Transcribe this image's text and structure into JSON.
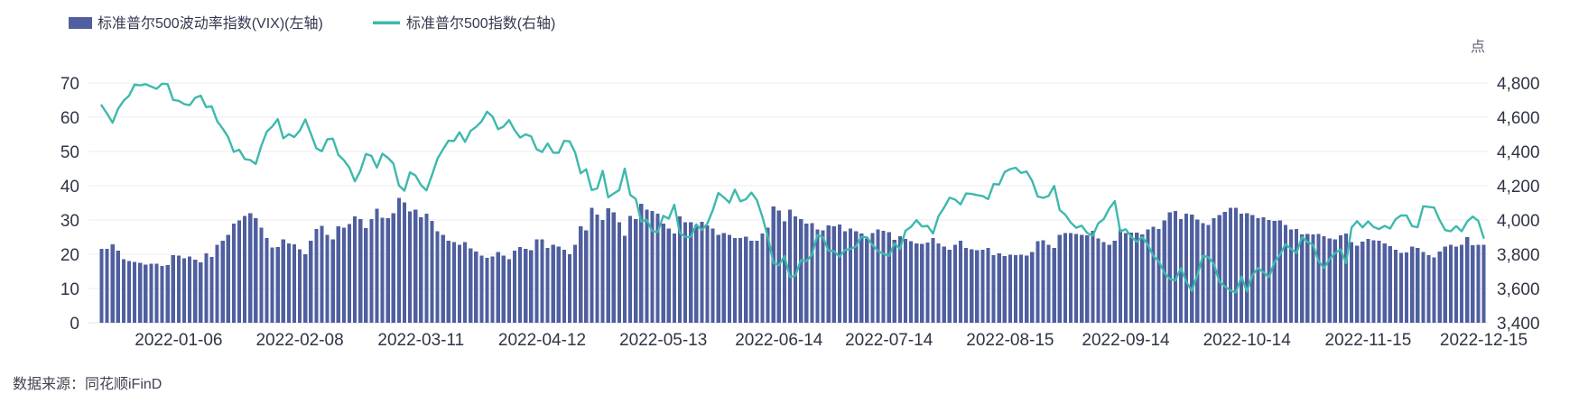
{
  "source": "数据来源：同花顺iFinD",
  "unit_label": "点",
  "colors": {
    "bar": "#4f5f9f",
    "line": "#3db9ac",
    "grid": "#ededf3",
    "baseline": "#e3e5ec",
    "axis_text": "#2f3545"
  },
  "legend": {
    "items": [
      {
        "label": "标准普尔500波动率指数(VIX)(左轴)",
        "type": "bar"
      },
      {
        "label": "标准普尔500指数(右轴)",
        "type": "line"
      }
    ]
  },
  "chart_data": {
    "type": "bar+line",
    "title": "",
    "xlabel": "",
    "ylabel_right_unit": "点",
    "grid": true,
    "legend_position": "top-left",
    "left_axis": {
      "min": 0,
      "max": 70,
      "tick_labels": [
        "0",
        "10",
        "20",
        "30",
        "40",
        "50",
        "60",
        "70"
      ]
    },
    "right_axis": {
      "min": 3400,
      "max": 4800,
      "tick_labels": [
        "3,400",
        "3,600",
        "3,800",
        "4,000",
        "4,200",
        "4,400",
        "4,600",
        "4,800"
      ]
    },
    "x_tick_indices": [
      14,
      36,
      58,
      80,
      102,
      123,
      143,
      165,
      186,
      208,
      230,
      251
    ],
    "x_tick_labels": [
      "2022-01-06",
      "2022-02-08",
      "2022-03-11",
      "2022-04-12",
      "2022-05-13",
      "2022-06-14",
      "2022-07-14",
      "2022-08-15",
      "2022-09-14",
      "2022-10-14",
      "2022-11-15",
      "2022-12-15"
    ],
    "x": [
      "2021-12-16",
      "2021-12-17",
      "2021-12-20",
      "2021-12-21",
      "2021-12-22",
      "2021-12-23",
      "2021-12-27",
      "2021-12-28",
      "2021-12-29",
      "2021-12-30",
      "2021-12-31",
      "2022-01-03",
      "2022-01-04",
      "2022-01-05",
      "2022-01-06",
      "2022-01-07",
      "2022-01-10",
      "2022-01-11",
      "2022-01-12",
      "2022-01-13",
      "2022-01-14",
      "2022-01-18",
      "2022-01-19",
      "2022-01-20",
      "2022-01-21",
      "2022-01-24",
      "2022-01-25",
      "2022-01-26",
      "2022-01-27",
      "2022-01-28",
      "2022-01-31",
      "2022-02-01",
      "2022-02-02",
      "2022-02-03",
      "2022-02-04",
      "2022-02-07",
      "2022-02-08",
      "2022-02-09",
      "2022-02-10",
      "2022-02-11",
      "2022-02-14",
      "2022-02-15",
      "2022-02-16",
      "2022-02-17",
      "2022-02-18",
      "2022-02-22",
      "2022-02-23",
      "2022-02-24",
      "2022-02-25",
      "2022-02-28",
      "2022-03-01",
      "2022-03-02",
      "2022-03-03",
      "2022-03-04",
      "2022-03-07",
      "2022-03-08",
      "2022-03-09",
      "2022-03-10",
      "2022-03-11",
      "2022-03-14",
      "2022-03-15",
      "2022-03-16",
      "2022-03-17",
      "2022-03-18",
      "2022-03-21",
      "2022-03-22",
      "2022-03-23",
      "2022-03-24",
      "2022-03-25",
      "2022-03-28",
      "2022-03-29",
      "2022-03-30",
      "2022-03-31",
      "2022-04-01",
      "2022-04-04",
      "2022-04-05",
      "2022-04-06",
      "2022-04-07",
      "2022-04-08",
      "2022-04-11",
      "2022-04-12",
      "2022-04-13",
      "2022-04-14",
      "2022-04-18",
      "2022-04-19",
      "2022-04-20",
      "2022-04-21",
      "2022-04-22",
      "2022-04-25",
      "2022-04-26",
      "2022-04-27",
      "2022-04-28",
      "2022-04-29",
      "2022-05-02",
      "2022-05-03",
      "2022-05-04",
      "2022-05-05",
      "2022-05-06",
      "2022-05-09",
      "2022-05-10",
      "2022-05-11",
      "2022-05-12",
      "2022-05-13",
      "2022-05-16",
      "2022-05-17",
      "2022-05-18",
      "2022-05-19",
      "2022-05-20",
      "2022-05-23",
      "2022-05-24",
      "2022-05-25",
      "2022-05-26",
      "2022-05-27",
      "2022-05-31",
      "2022-06-01",
      "2022-06-02",
      "2022-06-03",
      "2022-06-06",
      "2022-06-07",
      "2022-06-08",
      "2022-06-09",
      "2022-06-10",
      "2022-06-13",
      "2022-06-14",
      "2022-06-15",
      "2022-06-16",
      "2022-06-17",
      "2022-06-21",
      "2022-06-22",
      "2022-06-23",
      "2022-06-24",
      "2022-06-27",
      "2022-06-28",
      "2022-06-29",
      "2022-06-30",
      "2022-07-01",
      "2022-07-05",
      "2022-07-06",
      "2022-07-07",
      "2022-07-08",
      "2022-07-11",
      "2022-07-12",
      "2022-07-13",
      "2022-07-14",
      "2022-07-15",
      "2022-07-18",
      "2022-07-19",
      "2022-07-20",
      "2022-07-21",
      "2022-07-22",
      "2022-07-25",
      "2022-07-26",
      "2022-07-27",
      "2022-07-28",
      "2022-07-29",
      "2022-08-01",
      "2022-08-02",
      "2022-08-03",
      "2022-08-04",
      "2022-08-05",
      "2022-08-08",
      "2022-08-09",
      "2022-08-10",
      "2022-08-11",
      "2022-08-12",
      "2022-08-15",
      "2022-08-16",
      "2022-08-17",
      "2022-08-18",
      "2022-08-19",
      "2022-08-22",
      "2022-08-23",
      "2022-08-24",
      "2022-08-25",
      "2022-08-26",
      "2022-08-29",
      "2022-08-30",
      "2022-08-31",
      "2022-09-01",
      "2022-09-02",
      "2022-09-06",
      "2022-09-07",
      "2022-09-08",
      "2022-09-09",
      "2022-09-12",
      "2022-09-13",
      "2022-09-14",
      "2022-09-15",
      "2022-09-16",
      "2022-09-19",
      "2022-09-20",
      "2022-09-21",
      "2022-09-22",
      "2022-09-23",
      "2022-09-26",
      "2022-09-27",
      "2022-09-28",
      "2022-09-29",
      "2022-09-30",
      "2022-10-03",
      "2022-10-04",
      "2022-10-05",
      "2022-10-06",
      "2022-10-07",
      "2022-10-10",
      "2022-10-11",
      "2022-10-12",
      "2022-10-13",
      "2022-10-14",
      "2022-10-17",
      "2022-10-18",
      "2022-10-19",
      "2022-10-20",
      "2022-10-21",
      "2022-10-24",
      "2022-10-25",
      "2022-10-26",
      "2022-10-27",
      "2022-10-28",
      "2022-10-31",
      "2022-11-01",
      "2022-11-02",
      "2022-11-03",
      "2022-11-04",
      "2022-11-07",
      "2022-11-08",
      "2022-11-09",
      "2022-11-10",
      "2022-11-11",
      "2022-11-14",
      "2022-11-15",
      "2022-11-16",
      "2022-11-17",
      "2022-11-18",
      "2022-11-21",
      "2022-11-22",
      "2022-11-23",
      "2022-11-25",
      "2022-11-28",
      "2022-11-29",
      "2022-11-30",
      "2022-12-01",
      "2022-12-02",
      "2022-12-05",
      "2022-12-06",
      "2022-12-07",
      "2022-12-08",
      "2022-12-09",
      "2022-12-12",
      "2022-12-13",
      "2022-12-14",
      "2022-12-15"
    ],
    "series": [
      {
        "name": "标准普尔500波动率指数(VIX)(左轴)",
        "type": "bar",
        "axis": "left",
        "color": "#4f5f9f",
        "values": [
          21.6,
          21.6,
          22.9,
          21.0,
          18.6,
          18.0,
          17.7,
          17.5,
          17.0,
          17.3,
          17.2,
          16.6,
          16.9,
          19.7,
          19.6,
          18.8,
          19.4,
          18.4,
          17.6,
          20.3,
          19.2,
          22.8,
          23.9,
          25.6,
          28.9,
          29.9,
          31.2,
          32.0,
          30.5,
          27.7,
          24.8,
          22.0,
          22.1,
          24.4,
          23.2,
          22.9,
          21.4,
          20.0,
          23.9,
          27.4,
          28.3,
          25.7,
          24.3,
          28.1,
          27.7,
          28.8,
          31.0,
          30.3,
          27.6,
          30.2,
          33.3,
          30.7,
          30.5,
          32.0,
          36.5,
          35.1,
          32.5,
          33.0,
          30.8,
          31.8,
          29.8,
          26.7,
          25.7,
          23.9,
          23.5,
          22.8,
          23.6,
          21.7,
          20.8,
          19.6,
          18.9,
          19.3,
          20.6,
          19.6,
          18.6,
          21.0,
          22.1,
          21.6,
          21.2,
          24.4,
          24.3,
          21.8,
          22.7,
          22.2,
          21.3,
          20.0,
          22.7,
          28.2,
          27.0,
          33.5,
          31.6,
          30.0,
          33.4,
          32.3,
          29.3,
          25.4,
          31.2,
          30.2,
          34.8,
          33.0,
          32.6,
          31.8,
          28.9,
          27.5,
          26.1,
          31.0,
          29.4,
          29.4,
          28.5,
          29.5,
          28.4,
          27.5,
          25.7,
          26.2,
          25.7,
          24.7,
          24.8,
          25.1,
          24.0,
          24.0,
          26.1,
          27.8,
          34.0,
          32.7,
          29.6,
          33.0,
          31.1,
          30.2,
          29.0,
          29.1,
          27.2,
          27.0,
          28.4,
          28.2,
          28.7,
          26.7,
          27.5,
          26.7,
          26.1,
          24.6,
          26.2,
          27.3,
          26.8,
          26.4,
          24.2,
          25.3,
          24.5,
          23.8,
          23.1,
          23.0,
          23.4,
          24.7,
          23.2,
          22.3,
          21.3,
          22.8,
          23.9,
          21.9,
          21.4,
          21.2,
          21.3,
          21.8,
          19.7,
          20.2,
          19.5,
          19.9,
          19.7,
          19.9,
          19.6,
          20.6,
          23.8,
          24.1,
          22.8,
          21.8,
          25.6,
          26.2,
          26.2,
          25.9,
          25.6,
          25.5,
          26.9,
          24.6,
          23.6,
          22.8,
          23.9,
          27.3,
          26.2,
          26.3,
          26.3,
          25.8,
          27.2,
          28.0,
          27.4,
          29.9,
          32.3,
          32.6,
          30.2,
          31.8,
          31.6,
          30.1,
          29.1,
          28.6,
          30.5,
          31.4,
          32.4,
          33.6,
          33.6,
          31.9,
          32.0,
          31.4,
          30.5,
          30.8,
          30.0,
          29.7,
          29.9,
          28.5,
          27.3,
          27.4,
          25.8,
          25.9,
          25.8,
          25.9,
          25.3,
          24.6,
          24.4,
          25.5,
          26.1,
          23.5,
          22.5,
          23.7,
          24.5,
          24.1,
          23.9,
          23.1,
          22.4,
          21.3,
          20.4,
          20.5,
          22.2,
          21.9,
          20.6,
          19.8,
          19.1,
          20.8,
          22.2,
          22.7,
          22.3,
          22.8,
          25.0,
          22.6,
          22.8,
          22.8
        ]
      },
      {
        "name": "标准普尔500指数(右轴)",
        "type": "line",
        "axis": "right",
        "color": "#3db9ac",
        "values": [
          4669,
          4621,
          4568,
          4649,
          4696,
          4726,
          4791,
          4786,
          4793,
          4779,
          4766,
          4796,
          4793,
          4701,
          4696,
          4677,
          4670,
          4713,
          4726,
          4659,
          4663,
          4577,
          4533,
          4483,
          4398,
          4410,
          4356,
          4350,
          4327,
          4432,
          4516,
          4546,
          4589,
          4477,
          4501,
          4484,
          4522,
          4587,
          4504,
          4419,
          4401,
          4471,
          4475,
          4380,
          4349,
          4305,
          4226,
          4288,
          4385,
          4374,
          4306,
          4387,
          4363,
          4329,
          4201,
          4171,
          4278,
          4260,
          4204,
          4173,
          4262,
          4358,
          4412,
          4463,
          4461,
          4512,
          4456,
          4520,
          4543,
          4576,
          4632,
          4603,
          4530,
          4546,
          4583,
          4525,
          4481,
          4500,
          4488,
          4413,
          4397,
          4447,
          4393,
          4392,
          4462,
          4459,
          4393,
          4272,
          4296,
          4175,
          4184,
          4287,
          4132,
          4155,
          4175,
          4300,
          4147,
          4123,
          3991,
          4001,
          3935,
          3930,
          4024,
          4008,
          4089,
          3924,
          3901,
          3901,
          3974,
          3941,
          3979,
          4058,
          4158,
          4132,
          4101,
          4177,
          4109,
          4121,
          4160,
          4116,
          4018,
          3901,
          3750,
          3735,
          3790,
          3667,
          3675,
          3765,
          3760,
          3796,
          3912,
          3900,
          3821,
          3819,
          3785,
          3825,
          3831,
          3845,
          3902,
          3899,
          3854,
          3819,
          3802,
          3790,
          3863,
          3831,
          3937,
          3960,
          3999,
          3962,
          3966,
          3921,
          4023,
          4072,
          4130,
          4119,
          4091,
          4155,
          4152,
          4145,
          4140,
          4122,
          4210,
          4207,
          4280,
          4297,
          4305,
          4274,
          4283,
          4228,
          4138,
          4129,
          4141,
          4199,
          4058,
          4031,
          3986,
          3955,
          3967,
          3924,
          3908,
          3980,
          4006,
          4067,
          4110,
          3933,
          3946,
          3901,
          3873,
          3900,
          3856,
          3790,
          3758,
          3693,
          3655,
          3647,
          3719,
          3640,
          3586,
          3678,
          3791,
          3783,
          3744,
          3640,
          3612,
          3589,
          3577,
          3670,
          3583,
          3678,
          3720,
          3695,
          3666,
          3753,
          3797,
          3859,
          3831,
          3807,
          3901,
          3872,
          3856,
          3760,
          3720,
          3771,
          3807,
          3828,
          3748,
          3956,
          3993,
          3957,
          3992,
          3959,
          3947,
          3965,
          3950,
          4004,
          4027,
          4026,
          3964,
          3958,
          4080,
          4077,
          4072,
          3999,
          3941,
          3934,
          3964,
          3934,
          3991,
          4020,
          3995,
          3896
        ]
      }
    ]
  }
}
